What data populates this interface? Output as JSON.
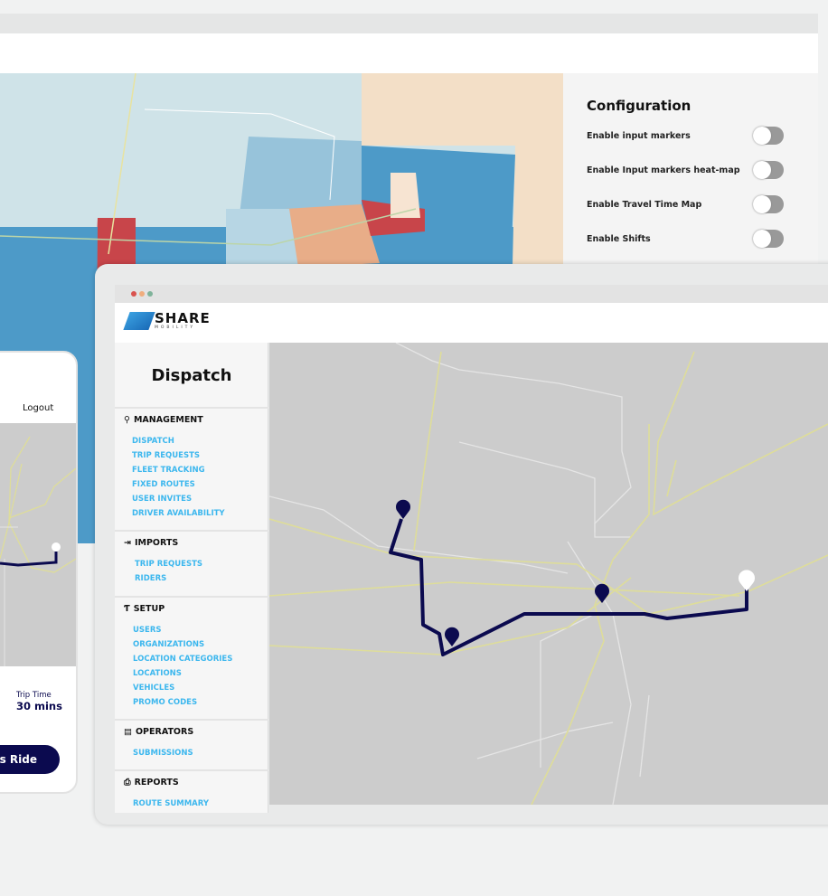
{
  "config": {
    "title": "Configuration",
    "toggles": [
      {
        "label": "Enable input markers",
        "on": false
      },
      {
        "label": "Enable Input markers heat-map",
        "on": false
      },
      {
        "label": "Enable Travel Time Map",
        "on": false
      },
      {
        "label": "Enable Shifts",
        "on": false
      }
    ]
  },
  "logo": {
    "name": "SHARE",
    "sub": "MOBILITY"
  },
  "sidebar": {
    "title": "Dispatch",
    "sections": [
      {
        "label": "MANAGEMENT",
        "icon": "map-pin-icon",
        "items": [
          "DISPATCH",
          "TRIP REQUESTS",
          "FLEET TRACKING",
          "FIXED ROUTES",
          "USER INVITES",
          "DRIVER AVAILABILITY"
        ]
      },
      {
        "label": "IMPORTS",
        "icon": "import-icon",
        "items": [
          "TRIP REQUESTS",
          "RIDERS"
        ]
      },
      {
        "label": "SETUP",
        "icon": "setup-icon",
        "items": [
          "USERS",
          "ORGANIZATIONS",
          "LOCATION CATEGORIES",
          "LOCATIONS",
          "VEHICLES",
          "PROMO CODES"
        ]
      },
      {
        "label": "OPERATORS",
        "icon": "operators-icon",
        "items": [
          "SUBMISSIONS"
        ]
      },
      {
        "label": "REPORTS",
        "icon": "printer-icon",
        "items": [
          "ROUTE SUMMARY"
        ]
      }
    ]
  },
  "phone": {
    "logout": "Logout",
    "trip_time_label": "Trip Time",
    "trip_time_value": "30 mins",
    "button": "is Ride"
  },
  "colors": {
    "accent": "#3cb7ee",
    "navy": "#0b0a4f",
    "heat_blue": "#4d9ac8",
    "heat_red": "#c8454a",
    "heat_peach": "#e8ad88"
  }
}
